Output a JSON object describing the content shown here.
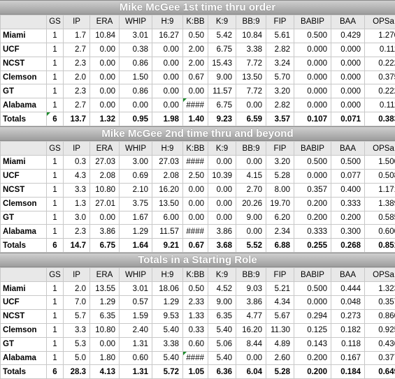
{
  "columns": [
    "",
    "GS",
    "IP",
    "ERA",
    "WHIP",
    "H:9",
    "K:BB",
    "K:9",
    "BB:9",
    "FIP",
    "BABIP",
    "BAA",
    "OPSa"
  ],
  "sections": [
    {
      "title": "Mike McGee 1st time thru order",
      "rows": [
        [
          "Miami",
          "1",
          "1.7",
          "10.84",
          "3.01",
          "16.27",
          "0.50",
          "5.42",
          "10.84",
          "5.61",
          "0.500",
          "0.429",
          "1.270"
        ],
        [
          "UCF",
          "1",
          "2.7",
          "0.00",
          "0.38",
          "0.00",
          "2.00",
          "6.75",
          "3.38",
          "2.82",
          "0.000",
          "0.000",
          "0.111"
        ],
        [
          "NCST",
          "1",
          "2.3",
          "0.00",
          "0.86",
          "0.00",
          "2.00",
          "15.43",
          "7.72",
          "3.24",
          "0.000",
          "0.000",
          "0.222"
        ],
        [
          "Clemson",
          "1",
          "2.0",
          "0.00",
          "1.50",
          "0.00",
          "0.67",
          "9.00",
          "13.50",
          "5.70",
          "0.000",
          "0.000",
          "0.375"
        ],
        [
          "GT",
          "1",
          "2.3",
          "0.00",
          "0.86",
          "0.00",
          "0.00",
          "11.57",
          "7.72",
          "3.20",
          "0.000",
          "0.000",
          "0.222"
        ],
        [
          "Alabama",
          "1",
          "2.7",
          "0.00",
          "0.00",
          "0.00",
          "####",
          "6.75",
          "0.00",
          "2.82",
          "0.000",
          "0.000",
          "0.111"
        ],
        [
          "Totals",
          "6",
          "13.7",
          "1.32",
          "0.95",
          "1.98",
          "1.40",
          "9.23",
          "6.59",
          "3.57",
          "0.107",
          "0.071",
          "0.383"
        ]
      ]
    },
    {
      "title": "Mike McGee 2nd time thru and beyond",
      "rows": [
        [
          "Miami",
          "1",
          "0.3",
          "27.03",
          "3.00",
          "27.03",
          "####",
          "0.00",
          "0.00",
          "3.20",
          "0.500",
          "0.500",
          "1.500"
        ],
        [
          "UCF",
          "1",
          "4.3",
          "2.08",
          "0.69",
          "2.08",
          "2.50",
          "10.39",
          "4.15",
          "5.28",
          "0.000",
          "0.077",
          "0.508"
        ],
        [
          "NCST",
          "1",
          "3.3",
          "10.80",
          "2.10",
          "16.20",
          "0.00",
          "0.00",
          "2.70",
          "8.00",
          "0.357",
          "0.400",
          "1.171"
        ],
        [
          "Clemson",
          "1",
          "1.3",
          "27.01",
          "3.75",
          "13.50",
          "0.00",
          "0.00",
          "20.26",
          "19.70",
          "0.200",
          "0.333",
          "1.389"
        ],
        [
          "GT",
          "1",
          "3.0",
          "0.00",
          "1.67",
          "6.00",
          "0.00",
          "0.00",
          "9.00",
          "6.20",
          "0.200",
          "0.200",
          "0.585"
        ],
        [
          "Alabama",
          "1",
          "2.3",
          "3.86",
          "1.29",
          "11.57",
          "####",
          "3.86",
          "0.00",
          "2.34",
          "0.333",
          "0.300",
          "0.600"
        ],
        [
          "Totals",
          "6",
          "14.7",
          "6.75",
          "1.64",
          "9.21",
          "0.67",
          "3.68",
          "5.52",
          "6.88",
          "0.255",
          "0.268",
          "0.851"
        ]
      ]
    },
    {
      "title": "Totals in a Starting Role",
      "rows": [
        [
          "Miami",
          "1",
          "2.0",
          "13.55",
          "3.01",
          "18.06",
          "0.50",
          "4.52",
          "9.03",
          "5.21",
          "0.500",
          "0.444",
          "1.323"
        ],
        [
          "UCF",
          "1",
          "7.0",
          "1.29",
          "0.57",
          "1.29",
          "2.33",
          "9.00",
          "3.86",
          "4.34",
          "0.000",
          "0.048",
          "0.357"
        ],
        [
          "NCST",
          "1",
          "5.7",
          "6.35",
          "1.59",
          "9.53",
          "1.33",
          "6.35",
          "4.77",
          "5.67",
          "0.294",
          "0.273",
          "0.860"
        ],
        [
          "Clemson",
          "1",
          "3.3",
          "10.80",
          "2.40",
          "5.40",
          "0.33",
          "5.40",
          "16.20",
          "11.30",
          "0.125",
          "0.182",
          "0.925"
        ],
        [
          "GT",
          "1",
          "5.3",
          "0.00",
          "1.31",
          "3.38",
          "0.60",
          "5.06",
          "8.44",
          "4.89",
          "0.143",
          "0.118",
          "0.436"
        ],
        [
          "Alabama",
          "1",
          "5.0",
          "1.80",
          "0.60",
          "5.40",
          "####",
          "5.40",
          "0.00",
          "2.60",
          "0.200",
          "0.167",
          "0.377"
        ],
        [
          "Totals",
          "6",
          "28.3",
          "4.13",
          "1.31",
          "5.72",
          "1.05",
          "6.36",
          "6.04",
          "5.28",
          "0.200",
          "0.184",
          "0.649"
        ]
      ]
    }
  ]
}
